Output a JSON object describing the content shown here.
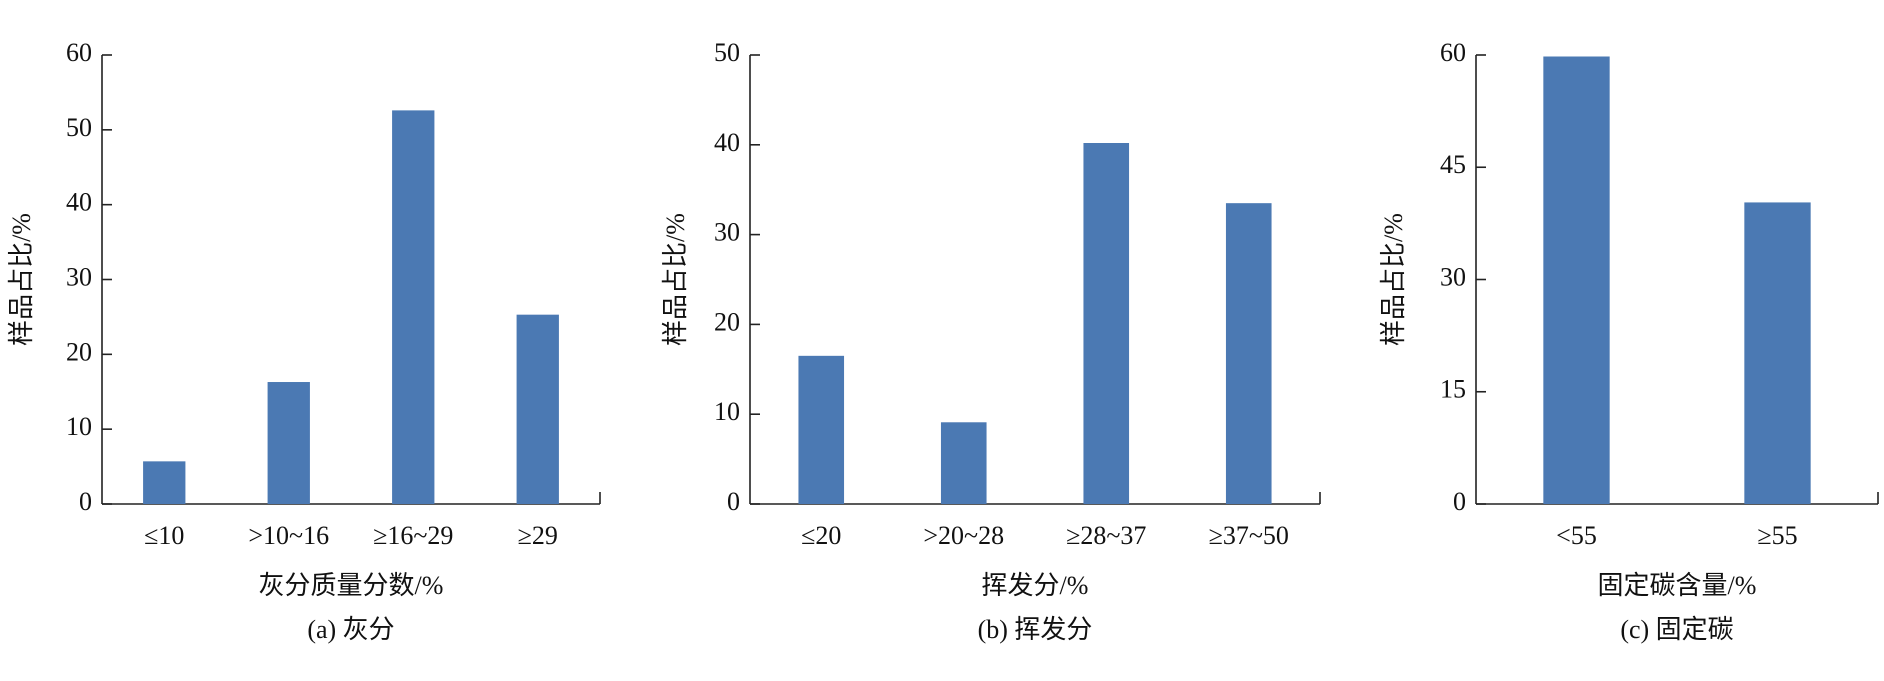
{
  "chart_data": [
    {
      "type": "bar",
      "categories": [
        "≤10",
        ">10~16",
        "≥16~29",
        "≥29"
      ],
      "values": [
        5.7,
        16.3,
        52.6,
        25.3
      ],
      "color": "#4b79b3",
      "ylim": [
        0,
        60
      ],
      "yticks": [
        0,
        10,
        20,
        30,
        40,
        50,
        60
      ],
      "ylabel": "样品占比/%",
      "xlabel": "灰分质量分数/%",
      "caption": "(a) 灰分"
    },
    {
      "type": "bar",
      "categories": [
        "≤20",
        ">20~28",
        "≥28~37",
        "≥37~50"
      ],
      "values": [
        16.5,
        9.1,
        40.2,
        33.5
      ],
      "color": "#4b79b3",
      "ylim": [
        0,
        50
      ],
      "yticks": [
        0,
        10,
        20,
        30,
        40,
        50
      ],
      "ylabel": "样品占比/%",
      "xlabel": "挥发分/%",
      "caption": "(b) 挥发分"
    },
    {
      "type": "bar",
      "categories": [
        "<55",
        "≥55"
      ],
      "values": [
        59.8,
        40.3
      ],
      "color": "#4b79b3",
      "ylim": [
        0,
        60
      ],
      "yticks": [
        0,
        15,
        30,
        45,
        60
      ],
      "ylabel": "样品占比/%",
      "xlabel": "固定碳含量/%",
      "caption": "(c) 固定碳"
    }
  ]
}
